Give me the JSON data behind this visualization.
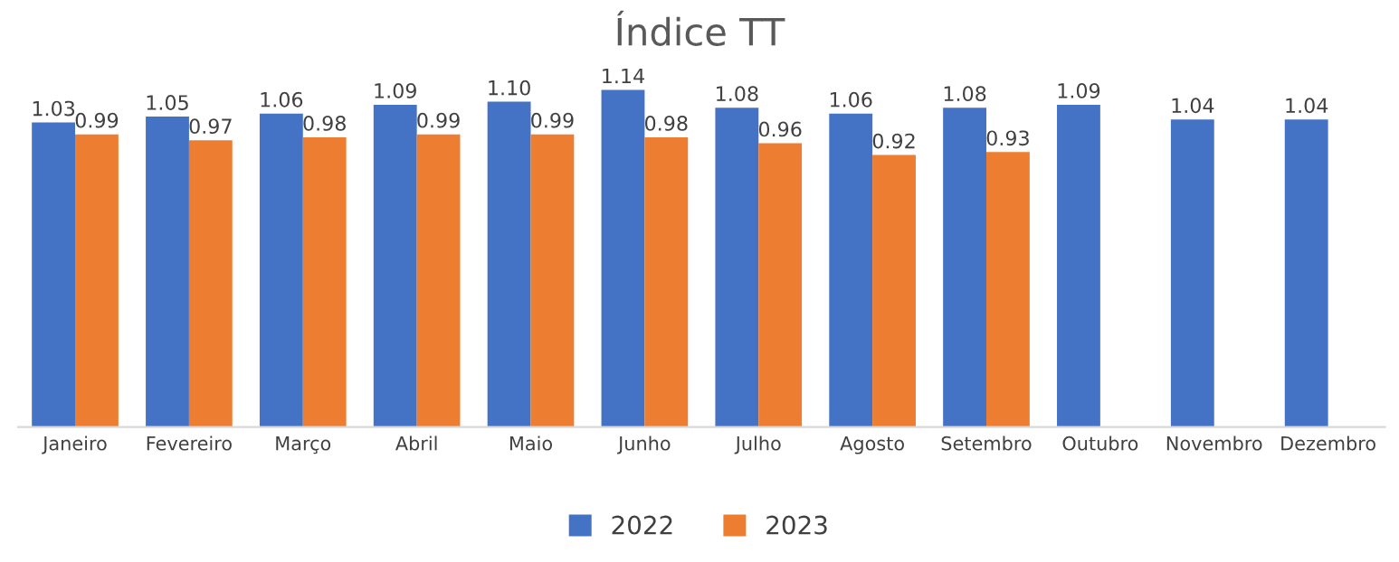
{
  "chart_data": {
    "type": "bar",
    "title": "Índice TT",
    "categories": [
      "Janeiro",
      "Fevereiro",
      "Março",
      "Abril",
      "Maio",
      "Junho",
      "Julho",
      "Agosto",
      "Setembro",
      "Outubro",
      "Novembro",
      "Dezembro"
    ],
    "series": [
      {
        "name": "2022",
        "color": "#4472c4",
        "values": [
          1.03,
          1.05,
          1.06,
          1.09,
          1.1,
          1.14,
          1.08,
          1.06,
          1.08,
          1.09,
          1.04,
          1.04
        ],
        "value_labels": [
          "1.03",
          "1.05",
          "1.06",
          "1.09",
          "1.10",
          "1.14",
          "1.08",
          "1.06",
          "1.08",
          "1.09",
          "1.04",
          "1.04"
        ]
      },
      {
        "name": "2023",
        "color": "#ed7d31",
        "values": [
          0.99,
          0.97,
          0.98,
          0.99,
          0.99,
          0.98,
          0.96,
          0.92,
          0.93,
          null,
          null,
          null
        ],
        "value_labels": [
          "0.99",
          "0.97",
          "0.98",
          "0.99",
          "0.99",
          "0.98",
          "0.96",
          "0.92",
          "0.93",
          null,
          null,
          null
        ]
      }
    ],
    "tick_labels": "x",
    "legend": "bottom"
  }
}
